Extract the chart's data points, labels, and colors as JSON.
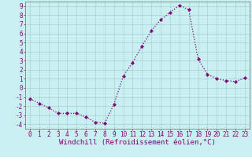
{
  "x": [
    0,
    1,
    2,
    3,
    4,
    5,
    6,
    7,
    8,
    9,
    10,
    11,
    12,
    13,
    14,
    15,
    16,
    17,
    18,
    19,
    20,
    21,
    22,
    23
  ],
  "y": [
    -1.2,
    -1.7,
    -2.2,
    -2.8,
    -2.8,
    -2.8,
    -3.2,
    -3.8,
    -3.9,
    -1.8,
    1.3,
    2.8,
    4.6,
    6.3,
    7.5,
    8.3,
    9.1,
    8.6,
    3.2,
    1.5,
    1.0,
    0.8,
    0.7,
    1.1
  ],
  "line_color": "#800080",
  "marker": "D",
  "marker_size": 2.0,
  "bg_color": "#c8f0f0",
  "grid_color": "#a0c0c0",
  "xlabel": "Windchill (Refroidissement éolien,°C)",
  "ylabel": "",
  "xlim": [
    -0.5,
    23.5
  ],
  "ylim": [
    -4.5,
    9.5
  ],
  "xticks": [
    0,
    1,
    2,
    3,
    4,
    5,
    6,
    7,
    8,
    9,
    10,
    11,
    12,
    13,
    14,
    15,
    16,
    17,
    18,
    19,
    20,
    21,
    22,
    23
  ],
  "yticks": [
    -4,
    -3,
    -2,
    -1,
    0,
    1,
    2,
    3,
    4,
    5,
    6,
    7,
    8,
    9
  ],
  "tick_color": "#800080",
  "label_color": "#800080",
  "spine_color": "#808080",
  "font_size": 5.5,
  "xlabel_fontsize": 6.5,
  "line_width": 0.9
}
